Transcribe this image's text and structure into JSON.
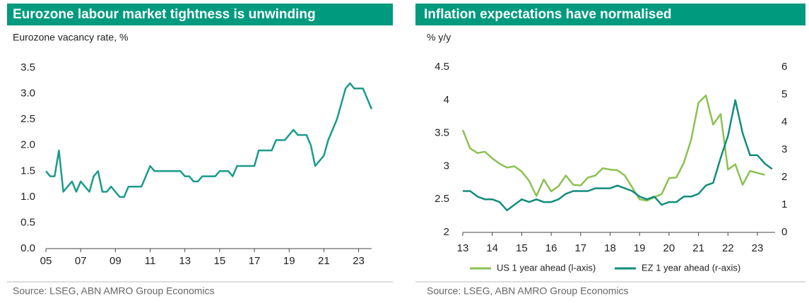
{
  "chart_data": [
    {
      "type": "line",
      "title": "Eurozone labour market tightness is unwinding",
      "subtitle": "Eurozone vacancy rate, %",
      "source": "Source: LSEG, ABN AMRO Group Economics",
      "series": [
        {
          "color": "#1a9b8a",
          "x": [
            2005,
            2005.25,
            2005.5,
            2005.75,
            2006,
            2006.25,
            2006.5,
            2006.75,
            2007,
            2007.25,
            2007.5,
            2007.75,
            2008,
            2008.25,
            2008.5,
            2008.75,
            2009,
            2009.25,
            2009.5,
            2009.75,
            2010,
            2010.25,
            2010.5,
            2010.75,
            2011,
            2011.25,
            2011.5,
            2011.75,
            2012,
            2012.25,
            2012.5,
            2012.75,
            2013,
            2013.25,
            2013.5,
            2013.75,
            2014,
            2014.25,
            2014.5,
            2014.75,
            2015,
            2015.25,
            2015.5,
            2015.75,
            2016,
            2016.25,
            2016.5,
            2016.75,
            2017,
            2017.25,
            2017.5,
            2017.75,
            2018,
            2018.25,
            2018.5,
            2018.75,
            2019,
            2019.25,
            2019.5,
            2019.75,
            2020,
            2020.25,
            2020.5,
            2020.75,
            2021,
            2021.25,
            2021.5,
            2021.75,
            2022,
            2022.25,
            2022.5,
            2022.75,
            2023,
            2023.25,
            2023.5,
            2023.75
          ],
          "values": [
            1.5,
            1.4,
            1.4,
            1.9,
            1.1,
            1.2,
            1.3,
            1.1,
            1.3,
            1.2,
            1.1,
            1.4,
            1.5,
            1.1,
            1.1,
            1.2,
            1.1,
            1.0,
            1.0,
            1.2,
            1.2,
            1.2,
            1.2,
            1.4,
            1.6,
            1.5,
            1.5,
            1.5,
            1.5,
            1.5,
            1.5,
            1.5,
            1.4,
            1.4,
            1.3,
            1.3,
            1.4,
            1.4,
            1.4,
            1.4,
            1.5,
            1.5,
            1.5,
            1.4,
            1.6,
            1.6,
            1.6,
            1.6,
            1.6,
            1.9,
            1.9,
            1.9,
            1.9,
            2.1,
            2.1,
            2.1,
            2.2,
            2.3,
            2.2,
            2.2,
            2.2,
            2.0,
            1.6,
            1.7,
            1.8,
            2.1,
            2.3,
            2.5,
            2.8,
            3.1,
            3.2,
            3.1,
            3.1,
            3.1,
            2.9,
            2.7
          ]
        }
      ],
      "xlim": [
        2005,
        2023.75
      ],
      "xticks": [
        {
          "value": 2005,
          "label": "05"
        },
        {
          "value": 2007,
          "label": "07"
        },
        {
          "value": 2009,
          "label": "09"
        },
        {
          "value": 2011,
          "label": "11"
        },
        {
          "value": 2013,
          "label": "13"
        },
        {
          "value": 2015,
          "label": "15"
        },
        {
          "value": 2017,
          "label": "17"
        },
        {
          "value": 2019,
          "label": "19"
        },
        {
          "value": 2021,
          "label": "21"
        },
        {
          "value": 2023,
          "label": "23"
        }
      ],
      "ylim": [
        0,
        3.5
      ],
      "yticks": [
        {
          "value": 0,
          "label": "0.0"
        },
        0.5,
        {
          "value": 1,
          "label": "1.0"
        },
        1.5,
        {
          "value": 2,
          "label": "2.0"
        },
        2.5,
        {
          "value": 3,
          "label": "3.0"
        },
        3.5
      ]
    },
    {
      "type": "line",
      "title": "Inflation expectations have normalised",
      "subtitle": "% y/y",
      "source": "Source: LSEG, ABN AMRO Group Economics",
      "series": [
        {
          "name": "US 1 year ahead (l-axis)",
          "color": "#8cc152",
          "x": [
            2013,
            2013.25,
            2013.5,
            2013.75,
            2014,
            2014.25,
            2014.5,
            2014.75,
            2015,
            2015.25,
            2015.5,
            2015.75,
            2016,
            2016.25,
            2016.5,
            2016.75,
            2017,
            2017.25,
            2017.5,
            2017.75,
            2018,
            2018.25,
            2018.5,
            2018.75,
            2019,
            2019.25,
            2019.5,
            2019.75,
            2020,
            2020.25,
            2020.5,
            2020.75,
            2021,
            2021.25,
            2021.5,
            2021.75,
            2022,
            2022.25,
            2022.5,
            2022.75,
            2023,
            2023.25
          ],
          "values": [
            3.55,
            3.27,
            3.2,
            3.22,
            3.12,
            3.04,
            2.98,
            3.0,
            2.92,
            2.78,
            2.55,
            2.8,
            2.62,
            2.7,
            2.86,
            2.72,
            2.71,
            2.83,
            2.86,
            2.97,
            2.95,
            2.94,
            2.86,
            2.68,
            2.5,
            2.48,
            2.53,
            2.58,
            2.82,
            2.83,
            3.05,
            3.4,
            3.96,
            4.07,
            3.63,
            3.79,
            2.95,
            3.03,
            2.72,
            2.93,
            2.9,
            2.87
          ]
        },
        {
          "name": "EZ 1 year ahead (r-axis)",
          "color": "#138c7c",
          "axis": "y2",
          "x": [
            2013,
            2013.25,
            2013.5,
            2013.75,
            2014,
            2014.25,
            2014.5,
            2014.75,
            2015,
            2015.25,
            2015.5,
            2015.75,
            2016,
            2016.25,
            2016.5,
            2016.75,
            2017,
            2017.25,
            2017.5,
            2017.75,
            2018,
            2018.25,
            2018.5,
            2018.75,
            2019,
            2019.25,
            2019.5,
            2019.75,
            2020,
            2020.25,
            2020.5,
            2020.75,
            2021,
            2021.25,
            2021.5,
            2021.75,
            2022,
            2022.25,
            2022.5,
            2022.75,
            2023,
            2023.25,
            2023.5
          ],
          "values": [
            1.5,
            1.5,
            1.3,
            1.2,
            1.2,
            1.1,
            0.8,
            1.0,
            1.2,
            1.1,
            1.2,
            1.1,
            1.1,
            1.2,
            1.4,
            1.5,
            1.5,
            1.5,
            1.6,
            1.6,
            1.6,
            1.7,
            1.6,
            1.5,
            1.3,
            1.2,
            1.3,
            1.0,
            1.1,
            1.1,
            1.3,
            1.3,
            1.4,
            1.7,
            1.8,
            2.7,
            3.5,
            4.8,
            3.6,
            2.8,
            2.8,
            2.5,
            2.3
          ]
        }
      ],
      "xlim": [
        2013,
        2023.6
      ],
      "xticks": [
        {
          "value": 2013,
          "label": "13"
        },
        {
          "value": 2014,
          "label": "14"
        },
        {
          "value": 2015,
          "label": "15"
        },
        {
          "value": 2016,
          "label": "16"
        },
        {
          "value": 2017,
          "label": "17"
        },
        {
          "value": 2018,
          "label": "18"
        },
        {
          "value": 2019,
          "label": "19"
        },
        {
          "value": 2020,
          "label": "20"
        },
        {
          "value": 2021,
          "label": "21"
        },
        {
          "value": 2022,
          "label": "22"
        },
        {
          "value": 2023,
          "label": "23"
        }
      ],
      "ylim": [
        2,
        4.5
      ],
      "yticks": [
        2,
        2.5,
        3,
        3.5,
        4,
        4.5
      ],
      "y2lim": [
        0,
        6
      ],
      "y2ticks": [
        0,
        1,
        2,
        3,
        4,
        5,
        6
      ]
    }
  ]
}
